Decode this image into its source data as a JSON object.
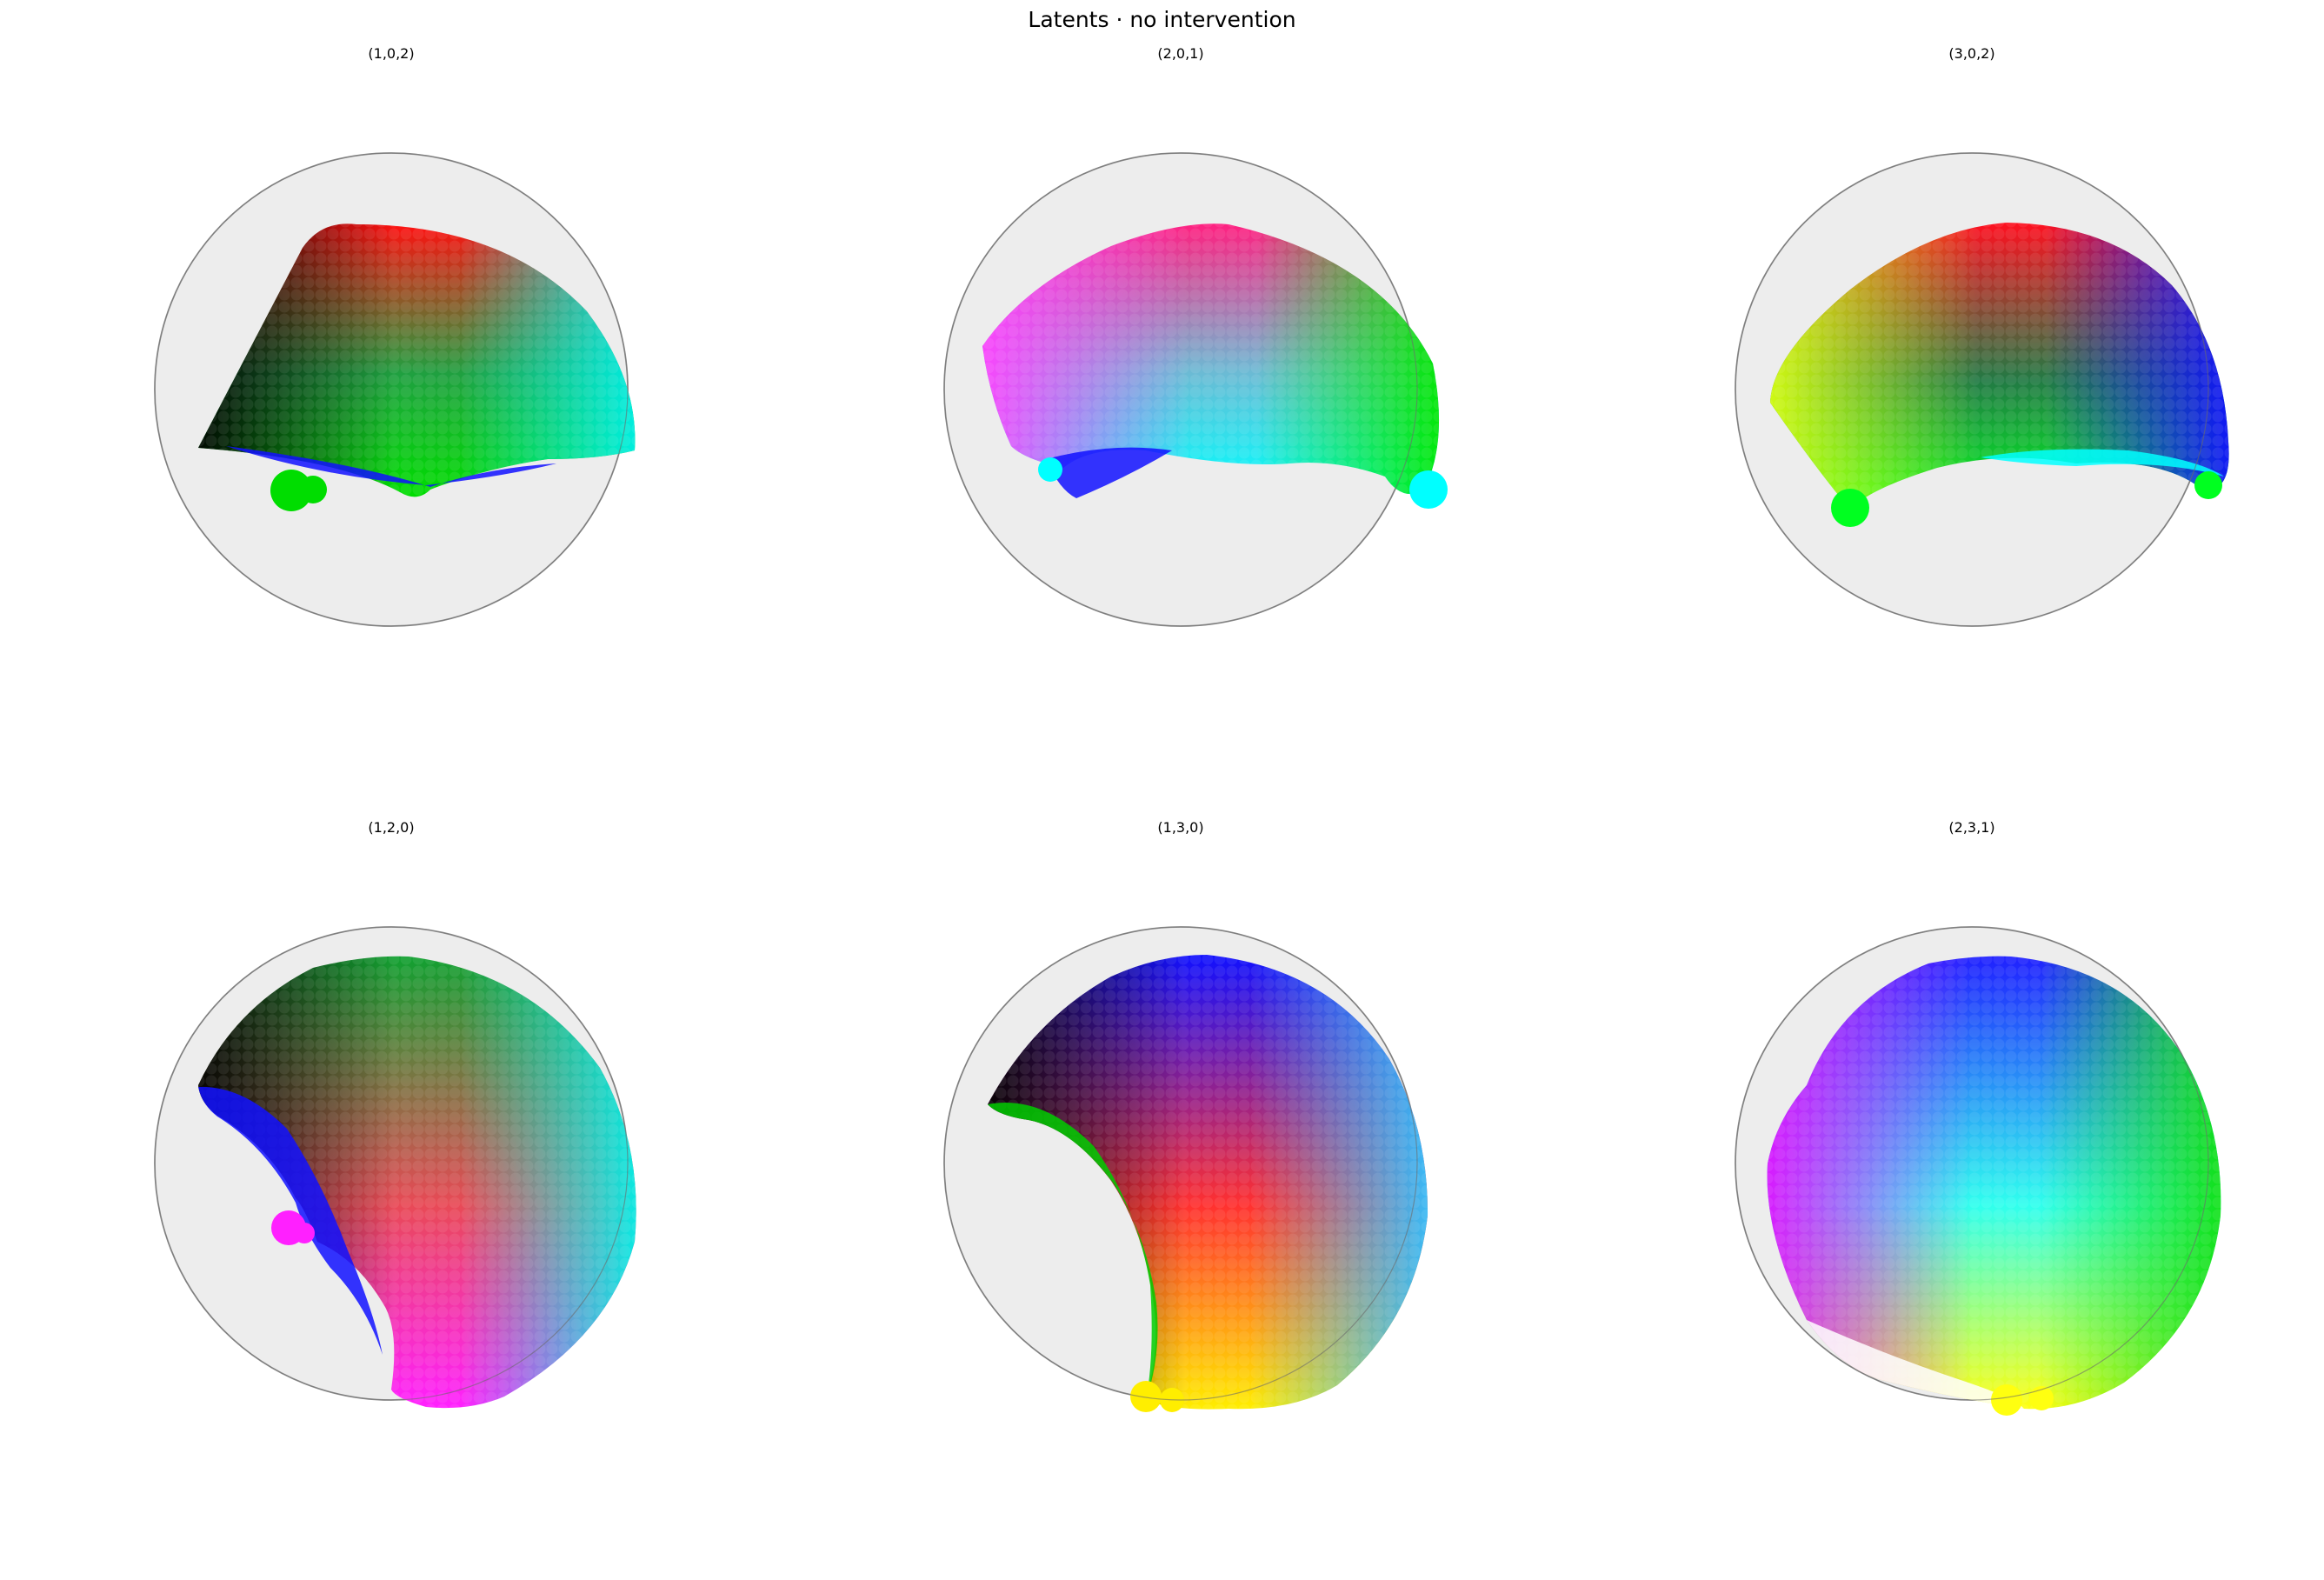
{
  "figure": {
    "title": "Latents · no intervention",
    "panels": [
      {
        "title": "(1,0,2)",
        "colors": {
          "base": "#1fa040",
          "edge_upper": "#ff1010",
          "edge_left": "#000000",
          "edge_right": "#00f0e8",
          "band": "#1010ff",
          "accent": "#00dd00"
        }
      },
      {
        "title": "(2,0,1)",
        "colors": {
          "base": "#6cbad4",
          "edge_upper": "#ff2080",
          "edge_left": "#ff40ff",
          "edge_right": "#00e800",
          "band": "#1010ff",
          "accent": "#00ffff"
        }
      },
      {
        "title": "(3,0,2)",
        "colors": {
          "base": "#227a44",
          "edge_upper": "#ff1020",
          "edge_left": "#d8ff10",
          "edge_right": "#1010ff",
          "band": "#00ffff",
          "accent": "#00ff20"
        }
      },
      {
        "title": "(1,2,0)",
        "colors": {
          "base": "#e84a56",
          "edge_upper": "#10a030",
          "edge_left": "#000000",
          "edge_right": "#00f0e8",
          "band": "#1010ff",
          "accent": "#ff20ff"
        }
      },
      {
        "title": "(1,3,0)",
        "colors": {
          "base": "#ff3030",
          "edge_upper": "#1010ff",
          "edge_left": "#000000",
          "edge_right": "#30c0ff",
          "band": "#00cc00",
          "accent": "#ffee00"
        }
      },
      {
        "title": "(2,3,1)",
        "colors": {
          "base": "#30ffee",
          "edge_upper": "#2020ff",
          "edge_left": "#e010ff",
          "edge_right": "#10e010",
          "band": "#ffffff",
          "accent": "#ffff10"
        }
      }
    ]
  }
}
